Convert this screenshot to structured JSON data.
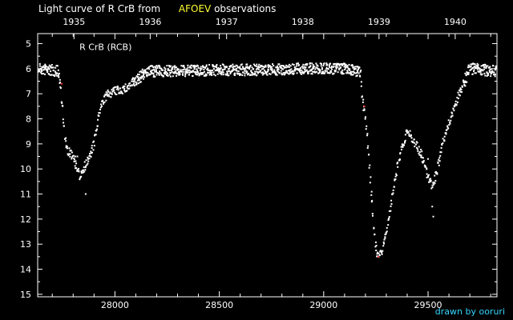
{
  "title": {
    "prefix": "Light curve of R CrB from",
    "source": "AFOEV",
    "suffix": "observations"
  },
  "credit": "drawn by ooruri",
  "colors": {
    "background": "#000000",
    "points": "#ffffff",
    "highlight": "#ff3333",
    "source": "#ffff33",
    "credit": "#33d6ff"
  },
  "chart_data": {
    "type": "scatter",
    "series_label": "R CrB (RCB)",
    "xlim": [
      27630,
      29830
    ],
    "ylim": [
      15.1,
      4.6
    ],
    "y_inverted": true,
    "x_ticks": [
      28000,
      28500,
      29000,
      29500
    ],
    "y_ticks": [
      5,
      6,
      7,
      8,
      9,
      10,
      11,
      12,
      13,
      14,
      15
    ],
    "top_axis": {
      "years": [
        "1935",
        "1936",
        "1937",
        "1938",
        "1939",
        "1940"
      ],
      "year_jd": [
        27804,
        28169,
        28535,
        28900,
        29265,
        29630
      ]
    },
    "curve": [
      [
        27630,
        6.0
      ],
      [
        27730,
        6.1
      ],
      [
        27740,
        6.8
      ],
      [
        27750,
        7.8
      ],
      [
        27760,
        8.8
      ],
      [
        27775,
        9.3
      ],
      [
        27800,
        9.5
      ],
      [
        27830,
        10.3
      ],
      [
        27860,
        9.8
      ],
      [
        27880,
        9.5
      ],
      [
        27900,
        9.0
      ],
      [
        27920,
        8.0
      ],
      [
        27940,
        7.3
      ],
      [
        27970,
        7.0
      ],
      [
        28000,
        6.9
      ],
      [
        28050,
        6.8
      ],
      [
        28100,
        6.5
      ],
      [
        28150,
        6.1
      ],
      [
        28300,
        6.1
      ],
      [
        28500,
        6.05
      ],
      [
        28700,
        6.05
      ],
      [
        28900,
        6.0
      ],
      [
        29100,
        6.0
      ],
      [
        29175,
        6.1
      ],
      [
        29185,
        7.2
      ],
      [
        29200,
        8.0
      ],
      [
        29215,
        9.3
      ],
      [
        29230,
        11.2
      ],
      [
        29245,
        12.8
      ],
      [
        29260,
        13.5
      ],
      [
        29280,
        13.3
      ],
      [
        29300,
        12.5
      ],
      [
        29320,
        11.6
      ],
      [
        29340,
        10.4
      ],
      [
        29360,
        9.6
      ],
      [
        29380,
        9.0
      ],
      [
        29400,
        8.5
      ],
      [
        29420,
        8.7
      ],
      [
        29440,
        9.0
      ],
      [
        29460,
        9.3
      ],
      [
        29480,
        9.8
      ],
      [
        29500,
        10.3
      ],
      [
        29520,
        10.7
      ],
      [
        29540,
        10.2
      ],
      [
        29570,
        9.0
      ],
      [
        29600,
        8.2
      ],
      [
        29640,
        7.2
      ],
      [
        29680,
        6.4
      ],
      [
        29700,
        6.0
      ],
      [
        29830,
        6.1
      ]
    ],
    "highlight_points": [
      [
        27745,
        6.6
      ],
      [
        29195,
        7.5
      ],
      [
        29262,
        13.5
      ]
    ]
  }
}
